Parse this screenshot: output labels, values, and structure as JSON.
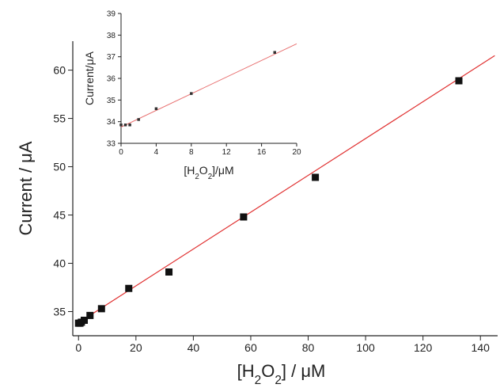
{
  "chart_data": [
    {
      "type": "scatter",
      "title": "",
      "xlabel": "[H2O2] / μM",
      "ylabel": "Current / μA",
      "xlim": [
        -2,
        146
      ],
      "ylim": [
        32.5,
        63
      ],
      "xticks": [
        "0",
        "20",
        "40",
        "60",
        "80",
        "100",
        "120",
        "140"
      ],
      "yticks": [
        "35",
        "40",
        "45",
        "50",
        "55",
        "60"
      ],
      "series": [
        {
          "marker_color": "#111111",
          "x": [
            0,
            0.5,
            1,
            2,
            4,
            8,
            17.5,
            31.5,
            57.5,
            82.5,
            132.5
          ],
          "y": [
            33.8,
            33.8,
            33.9,
            34.1,
            34.6,
            35.3,
            37.4,
            39.1,
            44.8,
            48.9,
            58.9
          ]
        }
      ],
      "fit_line": {
        "color": "#e03030",
        "x": [
          0,
          145
        ],
        "y": [
          33.85,
          61.5
        ]
      },
      "grid": false
    },
    {
      "type": "scatter",
      "title": "",
      "xlabel": "[H2O2]/μM",
      "ylabel": "Current/μA",
      "xlim": [
        0,
        20
      ],
      "ylim": [
        33,
        39
      ],
      "xticks": [
        "0",
        "4",
        "8",
        "12",
        "16",
        "20"
      ],
      "yticks": [
        "33",
        "34",
        "35",
        "36",
        "37",
        "38",
        "39"
      ],
      "series": [
        {
          "marker_color": "#333333",
          "x": [
            0,
            0.5,
            1,
            2,
            4,
            8,
            17.5
          ],
          "y": [
            33.85,
            33.85,
            33.85,
            34.1,
            34.6,
            35.3,
            37.2
          ]
        }
      ],
      "fit_line": {
        "color": "#e87070",
        "x": [
          0,
          20
        ],
        "y": [
          33.75,
          37.6
        ]
      },
      "grid": false
    }
  ]
}
